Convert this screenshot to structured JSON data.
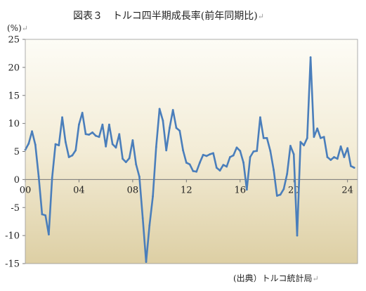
{
  "chart_data": {
    "type": "line",
    "title": "図表３　トルコ四半期成長率(前年同期比)",
    "title_mark": "↵",
    "ylabel": "(%)",
    "ylabel_mark": "↵",
    "source": "(出典）トルコ統計局",
    "source_mark": "↵",
    "xlim": [
      2000.0,
      2024.75
    ],
    "ylim": [
      -15,
      25
    ],
    "yticks": [
      25,
      20,
      15,
      10,
      5,
      0,
      -5,
      -10,
      -15
    ],
    "xticks": [
      {
        "label": "00",
        "x": 2000
      },
      {
        "label": "04",
        "x": 2004
      },
      {
        "label": "08",
        "x": 2008
      },
      {
        "label": "12",
        "x": 2012
      },
      {
        "label": "16",
        "x": 2016
      },
      {
        "label": "20",
        "x": 2020
      },
      {
        "label": "24",
        "x": 2024
      }
    ],
    "grid": false,
    "legend": "none",
    "series": [
      {
        "start": 2000.0,
        "step": 0.25,
        "color": "#4a7ebb",
        "values": [
          5.3,
          6.4,
          8.6,
          6.2,
          0.5,
          -6.2,
          -6.4,
          -9.8,
          0.3,
          6.3,
          6.1,
          11.1,
          6.7,
          4.0,
          4.3,
          5.2,
          9.8,
          11.9,
          8.1,
          8.0,
          8.4,
          7.8,
          7.6,
          9.8,
          5.9,
          9.8,
          6.3,
          5.7,
          8.1,
          3.7,
          3.1,
          3.8,
          7.0,
          2.7,
          0.5,
          -6.9,
          -14.7,
          -8.2,
          -3.0,
          5.8,
          12.6,
          10.5,
          5.2,
          9.2,
          12.4,
          9.2,
          8.7,
          5.2,
          3.0,
          2.7,
          1.5,
          1.4,
          3.0,
          4.4,
          4.2,
          4.5,
          4.7,
          2.1,
          1.6,
          2.6,
          2.3,
          4.0,
          4.3,
          5.7,
          5.1,
          3.0,
          -1.8,
          4.0,
          5.0,
          5.1,
          11.1,
          7.4,
          7.4,
          5.1,
          1.7,
          -2.9,
          -2.7,
          -1.7,
          1.0,
          6.0,
          4.5,
          -10.0,
          6.7,
          6.1,
          7.4,
          21.8,
          7.6,
          9.1,
          7.4,
          7.6,
          4.0,
          3.5,
          4.0,
          3.7,
          5.9,
          4.0,
          5.6,
          2.4,
          2.1
        ]
      }
    ]
  }
}
